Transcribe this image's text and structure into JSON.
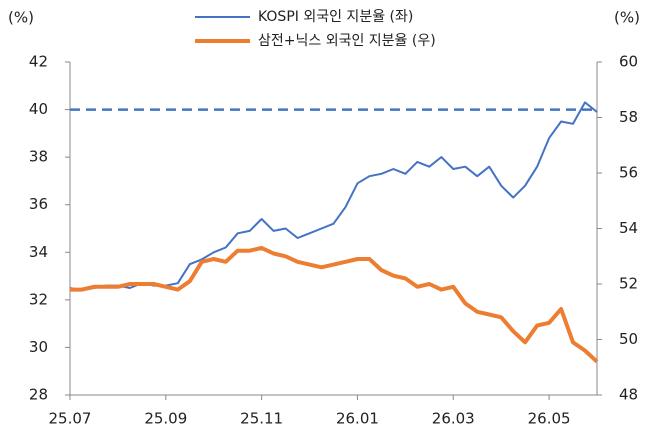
{
  "chart_data": {
    "type": "line",
    "y_label": "(%)",
    "y2_label": "(%)",
    "categories": [
      "25.07",
      null,
      null,
      null,
      null,
      null,
      null,
      null,
      "25.09",
      null,
      null,
      null,
      null,
      null,
      null,
      null,
      "25.11",
      null,
      null,
      null,
      null,
      null,
      null,
      null,
      "26.01",
      null,
      null,
      null,
      null,
      null,
      null,
      null,
      "26.03",
      null,
      null,
      null,
      null,
      null,
      null,
      null,
      "26.05",
      null,
      null,
      null,
      null
    ],
    "series": [
      {
        "name": "KOSPI 외국인 지분율 (좌)",
        "color": "#4472c4",
        "width": 2,
        "values": [
          32.5,
          32.4,
          32.5,
          32.6,
          32.6,
          32.5,
          32.7,
          32.6,
          32.6,
          32.7,
          33.5,
          33.7,
          34.0,
          34.2,
          34.8,
          34.9,
          35.4,
          34.9,
          35.0,
          34.6,
          34.8,
          35.0,
          35.2,
          35.9,
          36.9,
          37.2,
          37.3,
          37.5,
          37.3,
          37.8,
          37.6,
          38.0,
          37.5,
          37.6,
          37.2,
          37.6,
          36.8,
          36.3,
          36.8,
          37.6,
          38.8,
          39.5,
          39.4,
          40.3,
          39.9
        ]
      },
      {
        "name": "삼전+닉스 외국인 지분율 (우)",
        "color": "#ed7d31",
        "width": 4,
        "axis": "y2",
        "values": [
          51.8,
          51.8,
          51.9,
          51.9,
          51.9,
          52.0,
          52.0,
          52.0,
          51.9,
          51.8,
          52.1,
          52.8,
          52.9,
          52.8,
          53.2,
          53.2,
          53.3,
          53.1,
          53.0,
          52.8,
          52.7,
          52.6,
          52.7,
          52.8,
          52.9,
          52.9,
          52.5,
          52.3,
          52.2,
          51.9,
          52.0,
          51.8,
          51.9,
          51.3,
          51.0,
          50.9,
          50.8,
          50.3,
          49.9,
          50.5,
          50.6,
          51.1,
          49.9,
          49.6,
          49.2
        ]
      }
    ],
    "hline": {
      "value": 40,
      "color": "#4472c4"
    },
    "ylim": [
      28,
      42
    ],
    "yticks": [
      28,
      30,
      32,
      34,
      36,
      38,
      40,
      42
    ],
    "y2lim": [
      48,
      60
    ],
    "y2ticks": [
      48,
      50,
      52,
      54,
      56,
      58,
      60
    ]
  }
}
